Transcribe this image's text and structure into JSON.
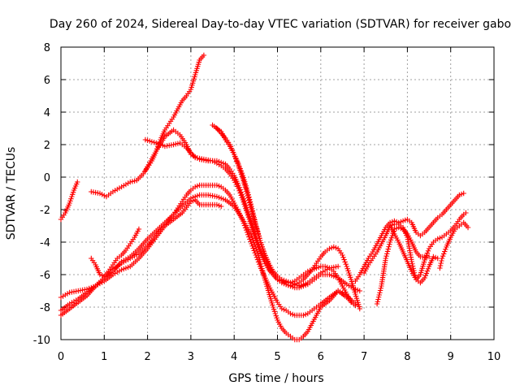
{
  "chart_data": {
    "type": "scatter",
    "title": "Day 260 of 2024, Sidereal Day-to-day VTEC variation (SDTVAR) for receiver gabo",
    "xlabel": "GPS time / hours",
    "ylabel": "SDTVAR / TECUs",
    "xlim": [
      0,
      10
    ],
    "ylim": [
      -10,
      8
    ],
    "xticks": [
      "0",
      "1",
      "2",
      "3",
      "4",
      "5",
      "6",
      "7",
      "8",
      "9",
      "10"
    ],
    "yticks": [
      "-10",
      "-8",
      "-6",
      "-4",
      "-2",
      "0",
      "2",
      "4",
      "6",
      "8"
    ],
    "grid": true,
    "legend": "none",
    "marker": "plus",
    "color": "#ff0000",
    "series": [
      {
        "x": [
          0.0,
          0.1,
          0.2,
          0.3,
          0.38
        ],
        "y": [
          -2.6,
          -2.2,
          -1.6,
          -0.8,
          -0.3
        ]
      },
      {
        "x": [
          0.7,
          0.9,
          1.05,
          1.2,
          1.4,
          1.6,
          1.75,
          1.9,
          2.0,
          2.1,
          2.2,
          2.3,
          2.4,
          2.5,
          2.6,
          2.7,
          2.8,
          2.9,
          3.0,
          3.1,
          3.2,
          3.3
        ],
        "y": [
          -0.9,
          -1.0,
          -1.2,
          -0.9,
          -0.6,
          -0.3,
          -0.2,
          0.2,
          0.6,
          1.0,
          1.6,
          2.3,
          2.9,
          3.3,
          3.7,
          4.2,
          4.7,
          5.0,
          5.4,
          6.3,
          7.2,
          7.5
        ]
      },
      {
        "x": [
          1.95,
          2.2,
          2.4,
          2.6,
          2.75,
          2.9,
          3.0,
          3.2,
          3.4,
          3.6,
          3.8,
          3.9,
          4.0,
          4.1,
          4.2,
          4.3,
          4.4,
          4.5,
          4.6,
          4.7,
          4.8,
          4.9,
          5.0,
          5.1,
          5.2,
          5.3,
          5.4,
          5.5,
          5.6,
          5.7,
          5.8,
          5.9,
          6.0,
          6.1,
          6.2,
          6.3,
          6.4,
          6.5,
          6.6,
          6.7,
          6.8,
          6.9
        ],
        "y": [
          0.4,
          1.6,
          2.5,
          2.9,
          2.6,
          2.0,
          1.4,
          1.1,
          1.0,
          1.0,
          0.8,
          0.5,
          0.1,
          -0.5,
          -1.2,
          -2.0,
          -2.8,
          -3.6,
          -4.4,
          -5.1,
          -5.6,
          -6.0,
          -6.2,
          -6.4,
          -6.6,
          -6.7,
          -6.6,
          -6.5,
          -6.3,
          -6.0,
          -5.7,
          -5.3,
          -4.9,
          -4.6,
          -4.4,
          -4.3,
          -4.4,
          -4.8,
          -5.5,
          -6.3,
          -7.2,
          -8.1
        ]
      },
      {
        "x": [
          1.95,
          2.2,
          2.4,
          2.6,
          2.75,
          2.9,
          3.1,
          3.3,
          3.5,
          3.7,
          3.8,
          3.9,
          4.0,
          4.1,
          4.2,
          4.3,
          4.4,
          4.5,
          4.6,
          4.7,
          4.8,
          4.9,
          5.0,
          5.1,
          5.2,
          5.3,
          5.4,
          5.5,
          5.6,
          5.7,
          5.8,
          5.9,
          6.0,
          6.1,
          6.2,
          6.3,
          6.4,
          6.5,
          6.6,
          6.7
        ],
        "y": [
          2.3,
          2.1,
          1.9,
          2.0,
          2.1,
          1.8,
          1.2,
          1.1,
          1.0,
          0.7,
          0.5,
          0.2,
          -0.2,
          -0.7,
          -1.4,
          -2.2,
          -3.0,
          -3.9,
          -4.6,
          -5.2,
          -5.7,
          -6.0,
          -6.3,
          -6.4,
          -6.5,
          -6.5,
          -6.4,
          -6.2,
          -6.0,
          -5.8,
          -5.7,
          -5.6,
          -5.5,
          -5.5,
          -5.6,
          -5.8,
          -6.2,
          -6.7,
          -7.2,
          -7.7
        ]
      },
      {
        "x": [
          3.5,
          3.7,
          3.8,
          3.9,
          4.0,
          4.1,
          4.2,
          4.3,
          4.4,
          4.5,
          4.6,
          4.7,
          4.8,
          4.9,
          5.0,
          5.1,
          5.2,
          5.3,
          5.4,
          5.5,
          5.6,
          5.7,
          5.8,
          5.9,
          6.0,
          6.2,
          6.4,
          6.6,
          6.8,
          6.9
        ],
        "y": [
          3.2,
          2.8,
          2.3,
          1.9,
          1.4,
          0.8,
          0.1,
          -0.8,
          -1.8,
          -2.9,
          -3.9,
          -4.8,
          -5.5,
          -6.0,
          -6.3,
          -6.5,
          -6.6,
          -6.7,
          -6.8,
          -6.8,
          -6.7,
          -6.6,
          -6.4,
          -6.2,
          -6.0,
          -6.0,
          -6.2,
          -6.6,
          -6.9,
          -7.0
        ]
      },
      {
        "x": [
          3.6,
          3.8,
          3.9,
          4.0,
          4.1,
          4.2,
          4.3,
          4.4,
          4.5,
          4.6,
          4.7,
          4.8,
          4.9,
          5.0,
          5.1,
          5.2,
          5.3,
          5.4,
          5.5,
          5.6,
          5.7,
          5.8,
          5.9,
          6.0,
          6.2,
          6.4
        ],
        "y": [
          3.0,
          2.4,
          2.0,
          1.4,
          0.7,
          -0.1,
          -1.0,
          -2.0,
          -3.0,
          -3.9,
          -4.7,
          -5.3,
          -5.8,
          -6.1,
          -6.3,
          -6.4,
          -6.5,
          -6.6,
          -6.7,
          -6.6,
          -6.5,
          -6.3,
          -6.1,
          -5.9,
          -5.6,
          -5.5
        ]
      },
      {
        "x": [
          0.0,
          0.2,
          0.4,
          0.6,
          0.8,
          1.0,
          1.2,
          1.4,
          1.6,
          1.8,
          2.0,
          2.2,
          2.4,
          2.6,
          2.8,
          3.0,
          3.1,
          3.2,
          3.4,
          3.6,
          3.7
        ],
        "y": [
          -7.4,
          -7.1,
          -7.0,
          -6.9,
          -6.7,
          -6.4,
          -6.0,
          -5.7,
          -5.5,
          -5.0,
          -4.4,
          -3.7,
          -3.0,
          -2.6,
          -2.2,
          -1.5,
          -1.4,
          -1.7,
          -1.7,
          -1.7,
          -1.8
        ]
      },
      {
        "x": [
          0.0,
          0.2,
          0.4,
          0.6,
          0.8,
          1.0,
          1.2,
          1.4,
          1.6,
          1.8,
          2.0,
          2.2,
          2.4,
          2.6,
          2.7,
          2.8,
          2.9,
          3.0,
          3.1,
          3.2,
          3.3,
          3.4,
          3.5,
          3.6,
          3.7,
          3.8,
          3.9,
          4.0,
          4.1,
          4.2,
          4.3,
          4.4,
          4.5,
          4.6,
          4.7,
          4.8,
          4.9,
          5.0,
          5.1,
          5.2,
          5.3,
          5.4,
          5.5,
          5.6,
          5.7,
          5.8,
          5.9,
          6.0,
          6.2,
          6.4,
          6.6,
          6.8
        ],
        "y": [
          -8.5,
          -8.1,
          -7.7,
          -7.3,
          -6.7,
          -6.2,
          -5.8,
          -5.2,
          -4.9,
          -4.4,
          -3.8,
          -3.3,
          -2.8,
          -2.3,
          -1.9,
          -1.5,
          -1.1,
          -0.8,
          -0.6,
          -0.5,
          -0.5,
          -0.5,
          -0.5,
          -0.5,
          -0.6,
          -0.8,
          -1.1,
          -1.6,
          -2.1,
          -2.7,
          -3.4,
          -4.1,
          -4.8,
          -5.5,
          -6.1,
          -6.7,
          -7.2,
          -7.7,
          -8.1,
          -8.2,
          -8.4,
          -8.5,
          -8.5,
          -8.5,
          -8.4,
          -8.2,
          -8.0,
          -7.8,
          -7.4,
          -7.0,
          -7.4,
          -7.9
        ]
      },
      {
        "x": [
          0.0,
          0.2,
          0.4,
          0.6,
          0.8,
          1.0,
          1.2,
          1.4,
          1.6,
          1.8,
          2.0,
          2.2,
          2.4,
          2.6,
          2.8,
          3.0,
          3.2,
          3.4,
          3.6,
          3.8,
          4.0,
          4.2,
          4.4,
          4.5,
          4.6,
          4.7,
          4.8,
          4.9,
          5.0,
          5.1,
          5.2,
          5.3,
          5.4,
          5.5,
          5.6,
          5.7,
          5.8,
          5.9,
          6.0,
          6.2,
          6.4,
          6.6,
          6.8
        ],
        "y": [
          -8.2,
          -7.8,
          -7.5,
          -7.1,
          -6.7,
          -6.2,
          -5.7,
          -5.3,
          -5.0,
          -4.7,
          -4.2,
          -3.6,
          -2.9,
          -2.3,
          -1.8,
          -1.3,
          -1.1,
          -1.1,
          -1.2,
          -1.4,
          -1.8,
          -2.6,
          -3.6,
          -4.3,
          -5.2,
          -6.2,
          -7.1,
          -8.0,
          -8.8,
          -9.3,
          -9.6,
          -9.8,
          -10.0,
          -10.0,
          -9.8,
          -9.5,
          -9.0,
          -8.5,
          -8.0,
          -7.6,
          -7.0,
          -7.3,
          -7.8
        ]
      },
      {
        "x": [
          0.7,
          0.8,
          0.9,
          1.0,
          1.1,
          1.2,
          1.3,
          1.4,
          1.5,
          1.6,
          1.7,
          1.8
        ],
        "y": [
          -5.0,
          -5.4,
          -6.0,
          -6.1,
          -5.8,
          -5.4,
          -5.0,
          -4.8,
          -4.5,
          -4.1,
          -3.7,
          -3.2
        ]
      },
      {
        "x": [
          6.8,
          6.9,
          7.0,
          7.1,
          7.2,
          7.3,
          7.4,
          7.5,
          7.6,
          7.7,
          7.8,
          7.9,
          8.0,
          8.1,
          8.2,
          8.3,
          8.4,
          8.5,
          8.6,
          8.7,
          8.8,
          8.9,
          9.0,
          9.1,
          9.2,
          9.3
        ],
        "y": [
          -6.4,
          -6.0,
          -5.5,
          -5.0,
          -4.6,
          -4.1,
          -3.6,
          -3.1,
          -2.8,
          -2.7,
          -2.8,
          -2.7,
          -2.6,
          -2.8,
          -3.4,
          -3.6,
          -3.4,
          -3.1,
          -2.8,
          -2.5,
          -2.3,
          -2.0,
          -1.7,
          -1.4,
          -1.1,
          -1.0
        ]
      },
      {
        "x": [
          7.0,
          7.1,
          7.2,
          7.3,
          7.4,
          7.5,
          7.6,
          7.7,
          7.8,
          7.9,
          8.0,
          8.1,
          8.2,
          8.3,
          8.4,
          8.5,
          8.6,
          8.7,
          8.8,
          8.9,
          9.0,
          9.1,
          9.2,
          9.3,
          9.35
        ],
        "y": [
          -5.9,
          -5.4,
          -5.0,
          -4.6,
          -4.1,
          -3.6,
          -3.0,
          -2.9,
          -2.9,
          -3.1,
          -3.7,
          -5.2,
          -6.3,
          -6.0,
          -5.1,
          -4.4,
          -4.0,
          -3.8,
          -3.7,
          -3.5,
          -3.3,
          -3.0,
          -2.6,
          -2.3,
          -2.2
        ]
      },
      {
        "x": [
          7.3,
          7.4,
          7.5,
          7.6,
          7.7,
          7.8,
          7.9,
          8.0,
          8.1,
          8.2,
          8.3,
          8.4,
          8.5
        ],
        "y": [
          -7.8,
          -6.7,
          -5.0,
          -4.0,
          -3.2,
          -3.1,
          -3.2,
          -3.5,
          -4.0,
          -4.6,
          -4.9,
          -4.9,
          -4.9
        ]
      },
      {
        "x": [
          7.6,
          7.7,
          7.8,
          7.9,
          8.0,
          8.1,
          8.2,
          8.3,
          8.4,
          8.5,
          8.6,
          8.7
        ],
        "y": [
          -3.0,
          -3.5,
          -4.0,
          -4.6,
          -5.2,
          -5.8,
          -6.3,
          -6.5,
          -6.2,
          -5.5,
          -4.9,
          -5.0
        ]
      },
      {
        "x": [
          8.75,
          8.8,
          8.9,
          9.0,
          9.1,
          9.2,
          9.3,
          9.4
        ],
        "y": [
          -5.6,
          -5.0,
          -4.3,
          -3.7,
          -3.2,
          -3.0,
          -2.8,
          -3.1
        ]
      }
    ]
  }
}
